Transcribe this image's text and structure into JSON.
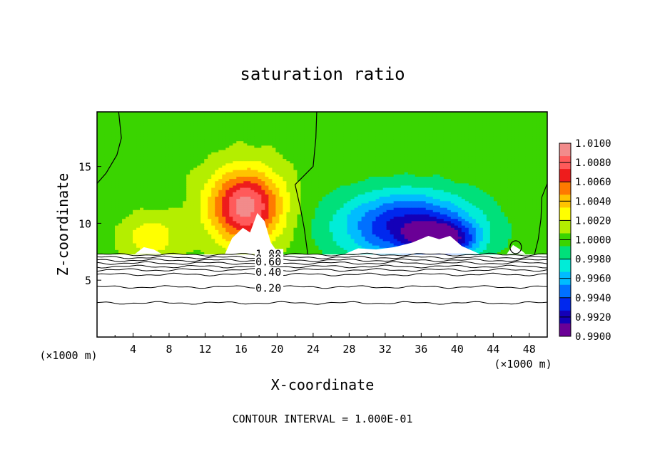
{
  "chart_data": {
    "type": "contour",
    "title": "saturation ratio",
    "xlabel": "X-coordinate",
    "ylabel": "Z-coordinate",
    "x_unit": "(×1000 m)",
    "y_unit": "(×1000 m)",
    "xlim": [
      0,
      50
    ],
    "ylim": [
      0,
      19.8
    ],
    "x_ticks": [
      4,
      8,
      12,
      16,
      20,
      24,
      28,
      32,
      36,
      40,
      44,
      48
    ],
    "y_ticks": [
      5,
      10,
      15
    ],
    "footer": "CONTOUR INTERVAL = 1.000E-01",
    "colorbar": {
      "levels": [
        "1.0100",
        "1.0080",
        "1.0060",
        "1.0040",
        "1.0020",
        "1.0000",
        "0.9980",
        "0.9960",
        "0.9940",
        "0.9920",
        "0.9900"
      ],
      "colors": [
        "#f28b8b",
        "#ff5a5a",
        "#ee1c1c",
        "#ff7a00",
        "#ffc400",
        "#ffff00",
        "#b4ee00",
        "#3ad400",
        "#00e07a",
        "#00ecd8",
        "#00bcff",
        "#0070ff",
        "#0028ee",
        "#1400b8",
        "#6a0096"
      ]
    },
    "contour_labels": [
      {
        "text": "1.00",
        "z": 7.3
      },
      {
        "text": "0.80",
        "z": 6.9
      },
      {
        "text": "0.60",
        "z": 6.6
      },
      {
        "text": "0.40",
        "z": 5.7
      },
      {
        "text": "0.20",
        "z": 4.3
      }
    ],
    "contour_levels_z": [
      7.25,
      7.0,
      6.75,
      6.5,
      6.2,
      5.9,
      5.5,
      4.4,
      3.0
    ],
    "cloud_base_z": 7.3,
    "field_sources": [
      {
        "x": 16.5,
        "z": 11.5,
        "value": 1.0092,
        "sx": 4.0,
        "sz": 3.2
      },
      {
        "x": 6.0,
        "z": 8.8,
        "value": 1.003,
        "sx": 3.0,
        "sz": 1.8
      },
      {
        "x": 34.5,
        "z": 9.8,
        "value": 0.9918,
        "sx": 7.5,
        "sz": 3.0
      },
      {
        "x": 38.5,
        "z": 8.6,
        "value": 0.9935,
        "sx": 3.5,
        "sz": 1.5
      }
    ]
  }
}
